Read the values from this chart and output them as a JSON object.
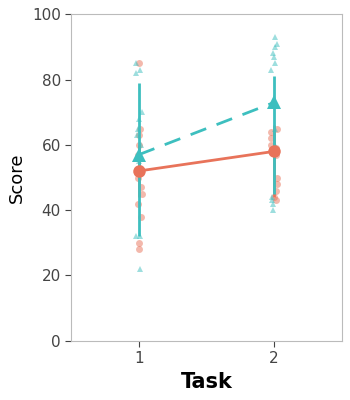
{
  "coral_color": "#E8735A",
  "teal_color": "#3DBFBF",
  "coral_alpha": 0.5,
  "teal_alpha": 0.5,
  "bg_color": "#FFFFFF",
  "coral_points_task1": [
    85,
    65,
    63,
    60,
    57,
    53,
    50,
    47,
    45,
    42,
    38,
    30,
    28
  ],
  "coral_points_task2": [
    65,
    64,
    62,
    60,
    59,
    57,
    50,
    48,
    46,
    44,
    43
  ],
  "teal_points_task1": [
    85,
    83,
    82,
    70,
    68,
    65,
    63,
    60,
    57,
    55,
    32,
    32,
    22
  ],
  "teal_points_task2": [
    93,
    91,
    90,
    88,
    87,
    85,
    83,
    65,
    60,
    44,
    43,
    42,
    40
  ],
  "coral_mean_task1": 52,
  "coral_mean_task2": 58,
  "coral_err_lo_task1": 8,
  "coral_err_hi_task1": 8,
  "coral_err_lo_task2": 14,
  "coral_err_hi_task2": 8,
  "teal_mean_task1": 57,
  "teal_mean_task2": 73,
  "teal_err_lo_task1": 25,
  "teal_err_hi_task1": 22,
  "teal_err_lo_task2": 28,
  "teal_err_hi_task2": 8,
  "xlim": [
    0.5,
    2.5
  ],
  "ylim": [
    0,
    100
  ],
  "yticks": [
    0,
    20,
    40,
    60,
    80,
    100
  ],
  "xticks": [
    1,
    2
  ],
  "xlabel": "Task",
  "ylabel": "Score",
  "xlabel_fontsize": 15,
  "ylabel_fontsize": 13,
  "tick_labelsize": 11
}
